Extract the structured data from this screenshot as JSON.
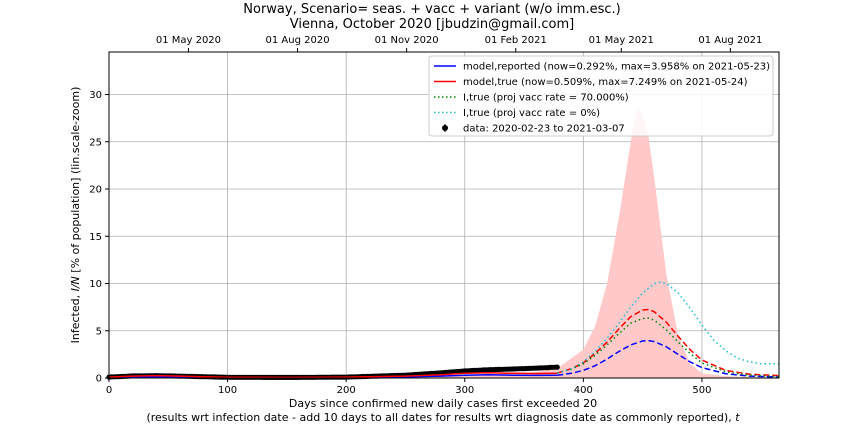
{
  "chart_data": {
    "type": "line",
    "title": "Norway, Scenario= seas. + vacc + variant (w/o imm.esc.)",
    "subtitle": "Vienna, October 2020 [jbudzin@gmail.com]",
    "xlabel": "Days since confirmed new daily cases first exceeded 20",
    "xlabel2_prefix": "(results wrt infection date - add 10 days to all dates for results wrt diagnosis date as commonly reported), ",
    "xlabel2_var": "t",
    "ylabel": "Infected, I/N [% of population] (lin.scale-zoom)",
    "xlim": [
      0,
      565
    ],
    "ylim": [
      0,
      34.5
    ],
    "x_ticks": [
      0,
      100,
      200,
      300,
      400,
      500
    ],
    "y_ticks": [
      0,
      5,
      10,
      15,
      20,
      25,
      30
    ],
    "grid": true,
    "top_axis_ticks": [
      {
        "x": 67,
        "label": "01 May 2020"
      },
      {
        "x": 159,
        "label": "01 Aug 2020"
      },
      {
        "x": 251,
        "label": "01 Nov 2020"
      },
      {
        "x": 343,
        "label": "01 Feb 2021"
      },
      {
        "x": 432,
        "label": "01 May 2021"
      },
      {
        "x": 524,
        "label": "01 Aug 2021"
      }
    ],
    "legend_position": "top-right",
    "legend": [
      {
        "label": "model,reported (now=0.292%, max=3.958% on 2021-05-23)",
        "color": "#0000ff",
        "style": "solid"
      },
      {
        "label": "model,true (now=0.509%, max=7.249% on 2021-05-24)",
        "color": "#ff0000",
        "style": "solid"
      },
      {
        "label": "I,true (proj vacc rate = 70.000%)",
        "color": "#008000",
        "style": "dotted"
      },
      {
        "label": "I,true (proj vacc rate = 0%)",
        "color": "#17becf",
        "style": "dotted"
      },
      {
        "label": "data: 2020-02-23 to 2021-03-07",
        "color": "#000000",
        "style": "marker"
      }
    ],
    "band": {
      "name": "uncertainty band (model,true)",
      "color": "#ffc9c9",
      "x": [
        0,
        300,
        330,
        360,
        380,
        400,
        410,
        420,
        430,
        440,
        445,
        450,
        455,
        460,
        465,
        470,
        480,
        490,
        500,
        520,
        540,
        565
      ],
      "upper": [
        0.2,
        0.3,
        0.4,
        0.6,
        1.2,
        3.0,
        5.5,
        10.0,
        17.0,
        25.0,
        28.5,
        28.0,
        25.5,
        21.0,
        16.0,
        11.0,
        4.5,
        1.5,
        0.5,
        0.2,
        0.1,
        0.05
      ],
      "lower": [
        0.0,
        0.0,
        0.0,
        0.0,
        0.0,
        0.0,
        0.0,
        0.0,
        0.0,
        0.0,
        0.0,
        0.0,
        0.0,
        0.0,
        0.0,
        0.0,
        0.0,
        0.0,
        0.0,
        0.0,
        0.0,
        0.0
      ]
    },
    "series": [
      {
        "name": "model,reported (now=0.292%, max=3.958% on 2021-05-23)",
        "color": "#0000ff",
        "x_solid": [
          0,
          20,
          40,
          60,
          80,
          100,
          150,
          200,
          250,
          280,
          300,
          320,
          340,
          360,
          378
        ],
        "y_solid": [
          0.05,
          0.12,
          0.15,
          0.12,
          0.08,
          0.04,
          0.03,
          0.05,
          0.12,
          0.2,
          0.3,
          0.35,
          0.3,
          0.28,
          0.29
        ],
        "x_dashed": [
          378,
          390,
          400,
          410,
          420,
          430,
          440,
          450,
          455,
          460,
          470,
          480,
          490,
          500,
          520,
          540,
          565
        ],
        "y_dashed": [
          0.29,
          0.5,
          0.8,
          1.3,
          2.0,
          2.8,
          3.5,
          3.92,
          3.96,
          3.85,
          3.3,
          2.5,
          1.7,
          1.1,
          0.45,
          0.2,
          0.1
        ]
      },
      {
        "name": "model,true (now=0.509%, max=7.249% on 2021-05-24)",
        "color": "#ff0000",
        "x_solid": [
          0,
          20,
          40,
          60,
          80,
          100,
          150,
          200,
          250,
          280,
          300,
          320,
          340,
          360,
          378
        ],
        "y_solid": [
          0.1,
          0.2,
          0.25,
          0.2,
          0.14,
          0.08,
          0.06,
          0.09,
          0.2,
          0.35,
          0.5,
          0.55,
          0.5,
          0.48,
          0.51
        ],
        "x_dashed": [
          378,
          390,
          400,
          410,
          420,
          430,
          440,
          450,
          455,
          460,
          470,
          480,
          490,
          500,
          520,
          540,
          565
        ],
        "y_dashed": [
          0.51,
          1.0,
          1.6,
          2.6,
          3.8,
          5.2,
          6.5,
          7.2,
          7.25,
          7.0,
          5.9,
          4.4,
          3.0,
          1.9,
          0.8,
          0.4,
          0.25
        ]
      },
      {
        "name": "I,true (proj vacc rate = 70.000%)",
        "color": "#008000",
        "x": [
          378,
          390,
          400,
          410,
          420,
          430,
          440,
          450,
          455,
          460,
          470,
          480,
          490,
          500,
          520,
          540,
          565
        ],
        "y": [
          0.51,
          0.95,
          1.5,
          2.4,
          3.5,
          4.7,
          5.8,
          6.3,
          6.35,
          6.1,
          5.1,
          3.8,
          2.6,
          1.6,
          0.65,
          0.3,
          0.15
        ]
      },
      {
        "name": "I,true (proj vacc rate = 0%)",
        "color": "#17becf",
        "x": [
          378,
          390,
          400,
          410,
          420,
          430,
          440,
          450,
          460,
          465,
          470,
          480,
          490,
          500,
          510,
          520,
          530,
          540,
          550,
          565
        ],
        "y": [
          0.51,
          1.0,
          1.7,
          2.8,
          4.2,
          5.8,
          7.5,
          9.0,
          10.0,
          10.15,
          10.0,
          9.0,
          7.4,
          5.6,
          4.0,
          2.9,
          2.1,
          1.7,
          1.5,
          1.5
        ]
      }
    ],
    "data_points": {
      "name": "data: 2020-02-23 to 2021-03-07",
      "color": "#000000",
      "x_start": 0,
      "x_end": 378,
      "x_step": 2,
      "profile_x": [
        0,
        20,
        40,
        60,
        80,
        100,
        150,
        200,
        250,
        280,
        300,
        320,
        340,
        360,
        378
      ],
      "profile_y": [
        0.1,
        0.22,
        0.25,
        0.2,
        0.14,
        0.08,
        0.06,
        0.1,
        0.3,
        0.55,
        0.75,
        0.88,
        0.95,
        1.05,
        1.15
      ]
    }
  }
}
